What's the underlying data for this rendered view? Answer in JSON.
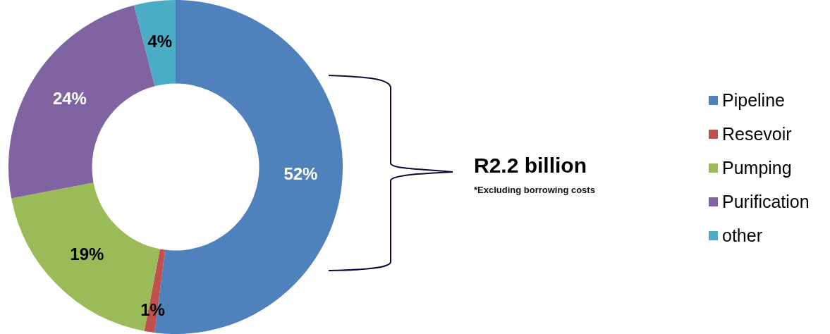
{
  "chart_data": {
    "type": "donut",
    "categories": [
      "Pipeline",
      "Resevoir",
      "Pumping",
      "Purification",
      "other"
    ],
    "values": [
      52,
      1,
      19,
      24,
      4
    ],
    "colors": [
      "#4f81bd",
      "#c0504d",
      "#9bbb59",
      "#8064a2",
      "#4bacc6"
    ],
    "value_labels": [
      "52%",
      "1%",
      "19%",
      "24%",
      "4%"
    ],
    "legend": "right",
    "annotations": [
      "R2.2 billion",
      "*Excluding borrowing costs"
    ]
  }
}
